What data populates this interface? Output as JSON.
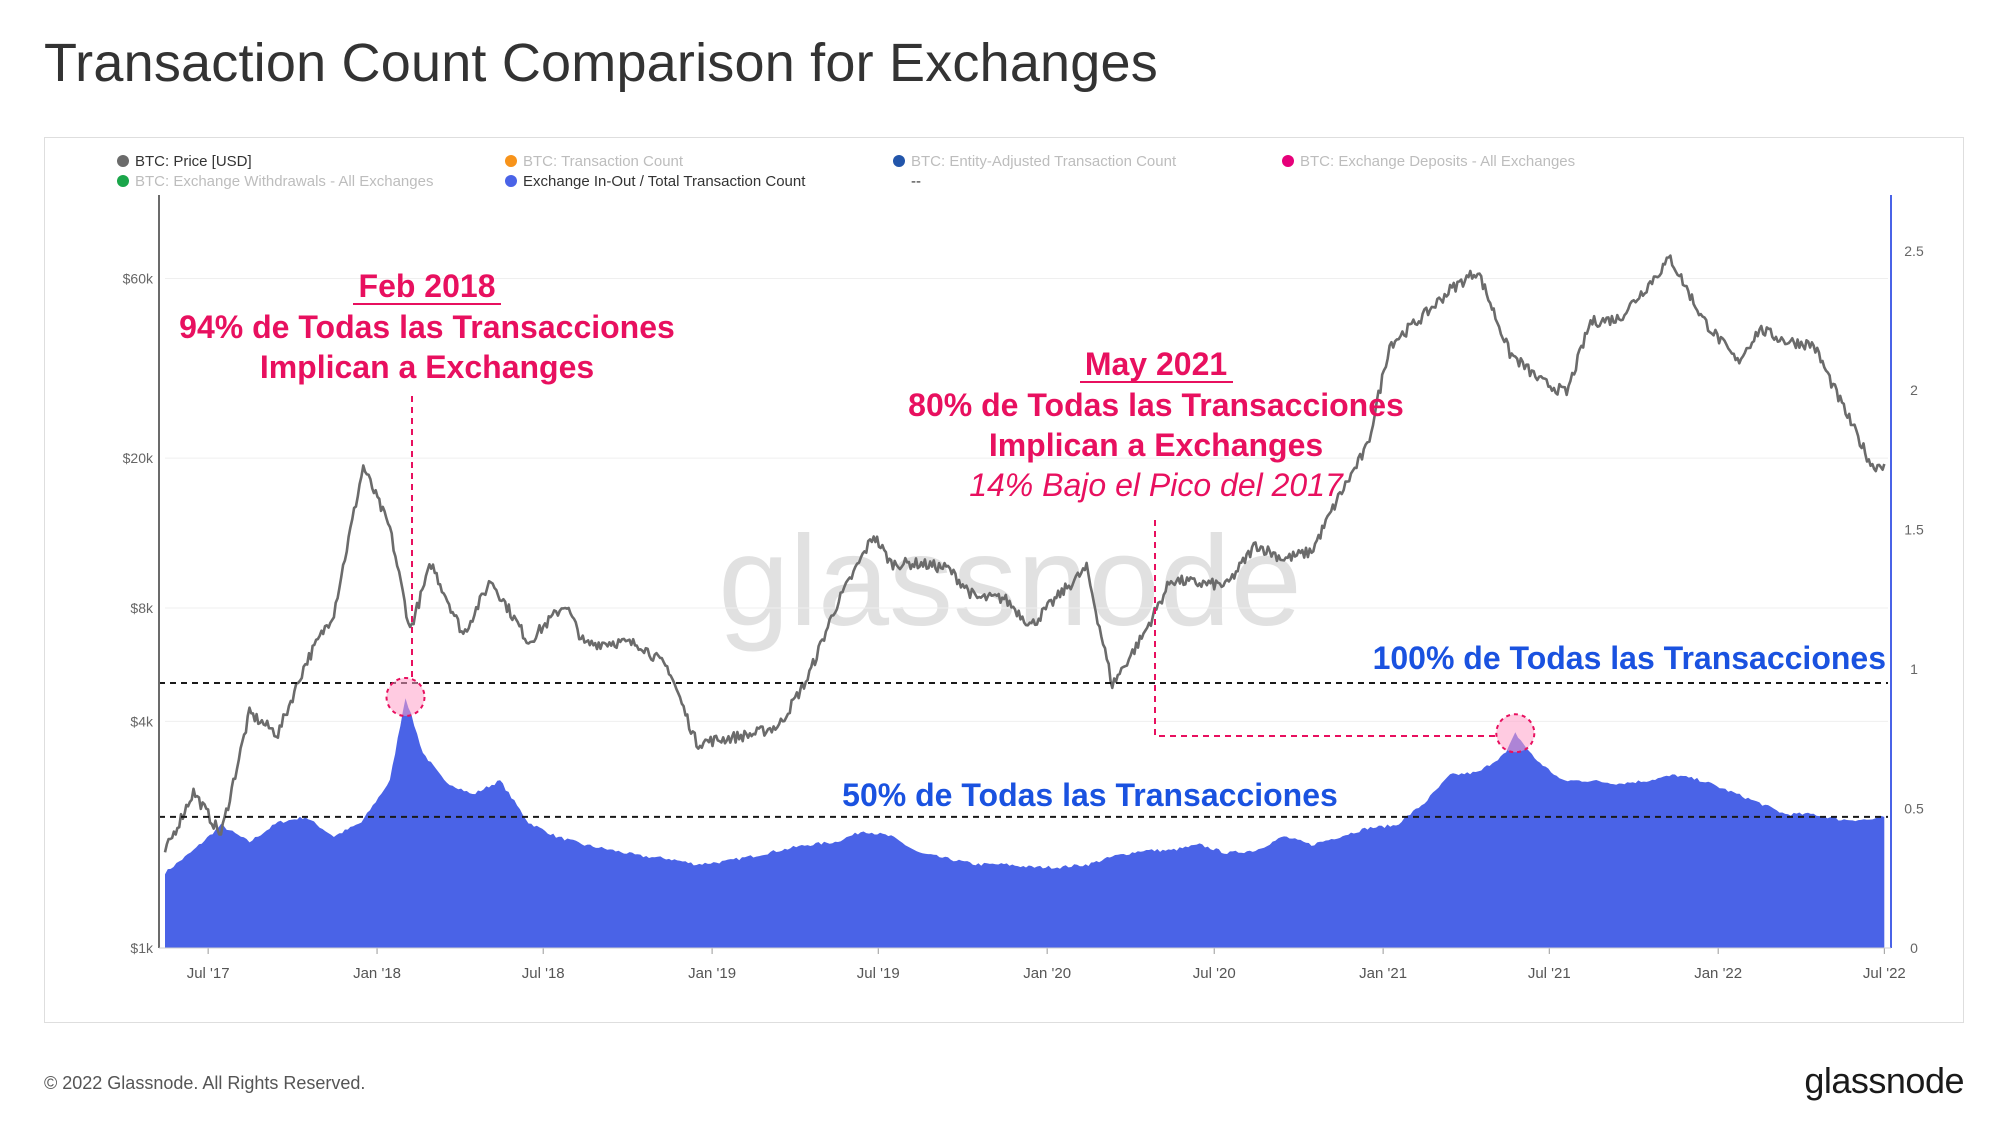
{
  "title": "Transaction Count Comparison for Exchanges",
  "footer": {
    "copyright": "© 2022 Glassnode. All Rights Reserved.",
    "brand": "glassnode"
  },
  "watermark": "glassnode",
  "legend": [
    {
      "label": "BTC: Price [USD]",
      "color": "#6b6b6b",
      "active": true
    },
    {
      "label": "BTC: Transaction Count",
      "color": "#f7931a",
      "active": false
    },
    {
      "label": "BTC: Entity-Adjusted Transaction Count",
      "color": "#2255aa",
      "active": false
    },
    {
      "label": "BTC: Exchange Deposits - All Exchanges",
      "color": "#e6007a",
      "active": false
    },
    {
      "label": "BTC: Exchange Withdrawals - All Exchanges",
      "color": "#1aa64a",
      "active": false
    },
    {
      "label": "Exchange In-Out / Total Transaction Count",
      "color": "#4a63e7",
      "active": true
    },
    {
      "label": "--",
      "color": "",
      "active": true
    }
  ],
  "annotations": {
    "feb2018": {
      "heading": "Feb 2018",
      "line1": "94% de Todas las Transacciones",
      "line2": "Implican a Exchanges"
    },
    "may2021": {
      "heading": "May 2021",
      "line1": "80% de Todas las Transacciones",
      "line2": "Implican a Exchanges",
      "line3": "14% Bajo el Pico del 2017"
    },
    "ref100": "100% de Todas las Transacciones",
    "ref50": "50% de Todas las Transacciones"
  },
  "colors": {
    "price_line": "#6b6b6b",
    "ratio_area": "#4a63e7",
    "annotation_pink": "#e8105f",
    "annotation_blue": "#1a52e0",
    "right_axis": "#4a63e7"
  },
  "chart_data": {
    "type": "area",
    "x_tick_labels": [
      "Jul '17",
      "Jan '18",
      "Jul '18",
      "Jan '19",
      "Jul '19",
      "Jan '20",
      "Jul '20",
      "Jan '21",
      "Jul '21",
      "Jan '22",
      "Jul '22"
    ],
    "y_left": {
      "scale": "log",
      "ticks": [
        "$1k",
        "$4k",
        "$8k",
        "$20k",
        "$60k"
      ],
      "tick_values": [
        1000,
        4000,
        8000,
        20000,
        60000
      ],
      "range": [
        1000,
        100000
      ]
    },
    "y_right": {
      "scale": "linear",
      "ticks": [
        "0",
        "0.5",
        "1",
        "1.5",
        "2",
        "2.5"
      ],
      "tick_values": [
        0,
        0.5,
        1,
        1.5,
        2,
        2.5
      ],
      "range": [
        0,
        2.7
      ]
    },
    "reference_lines": [
      {
        "value": 0.95,
        "axis": "right",
        "style": "dashed"
      },
      {
        "value": 0.47,
        "axis": "right",
        "style": "dashed"
      }
    ],
    "series": [
      {
        "name": "BTC: Price [USD]",
        "axis": "left",
        "style": "line",
        "x": [
          "2017-05-15",
          "2017-06-15",
          "2017-07-15",
          "2017-08-15",
          "2017-09-15",
          "2017-10-15",
          "2017-11-15",
          "2017-12-17",
          "2018-01-15",
          "2018-02-06",
          "2018-03-01",
          "2018-04-05",
          "2018-05-05",
          "2018-06-15",
          "2018-07-25",
          "2018-08-15",
          "2018-09-15",
          "2018-10-15",
          "2018-11-15",
          "2018-12-15",
          "2019-01-15",
          "2019-02-15",
          "2019-03-15",
          "2019-04-15",
          "2019-05-15",
          "2019-06-26",
          "2019-07-15",
          "2019-08-15",
          "2019-09-15",
          "2019-10-15",
          "2019-11-15",
          "2019-12-15",
          "2020-01-15",
          "2020-02-13",
          "2020-03-12",
          "2020-04-15",
          "2020-05-15",
          "2020-06-15",
          "2020-07-15",
          "2020-08-15",
          "2020-09-15",
          "2020-10-15",
          "2020-11-15",
          "2020-12-15",
          "2021-01-08",
          "2021-02-15",
          "2021-03-15",
          "2021-04-14",
          "2021-05-19",
          "2021-06-22",
          "2021-07-20",
          "2021-08-15",
          "2021-09-15",
          "2021-10-15",
          "2021-11-10",
          "2021-12-15",
          "2022-01-22",
          "2022-02-15",
          "2022-03-15",
          "2022-04-15",
          "2022-05-12",
          "2022-06-18",
          "2022-07-01"
        ],
        "y": [
          1800,
          2600,
          2000,
          4200,
          3700,
          5700,
          7800,
          19000,
          13000,
          7000,
          10500,
          6800,
          9500,
          6500,
          8200,
          6400,
          6500,
          6400,
          5500,
          3500,
          3600,
          3700,
          3900,
          5200,
          8000,
          12500,
          10500,
          10500,
          10200,
          8500,
          8500,
          7200,
          8700,
          10200,
          5000,
          6800,
          9500,
          9300,
          9200,
          11800,
          10800,
          11300,
          16000,
          21500,
          40000,
          48000,
          56000,
          63000,
          38000,
          32000,
          29800,
          46000,
          47000,
          57000,
          68000,
          47000,
          36000,
          44000,
          41000,
          40000,
          29000,
          19000,
          19300
        ]
      },
      {
        "name": "Exchange In-Out / Total Transaction Count",
        "axis": "right",
        "style": "area",
        "x": [
          "2017-05-15",
          "2017-06-15",
          "2017-07-15",
          "2017-08-15",
          "2017-09-15",
          "2017-10-15",
          "2017-11-15",
          "2017-12-15",
          "2018-01-15",
          "2018-02-01",
          "2018-02-20",
          "2018-03-15",
          "2018-04-15",
          "2018-05-15",
          "2018-06-15",
          "2018-07-15",
          "2018-08-15",
          "2018-09-15",
          "2018-10-15",
          "2018-11-15",
          "2018-12-15",
          "2019-01-15",
          "2019-02-15",
          "2019-03-15",
          "2019-04-15",
          "2019-05-15",
          "2019-06-15",
          "2019-07-15",
          "2019-08-15",
          "2019-09-15",
          "2019-10-15",
          "2019-11-15",
          "2019-12-15",
          "2020-01-15",
          "2020-02-15",
          "2020-03-15",
          "2020-04-15",
          "2020-05-15",
          "2020-06-15",
          "2020-07-15",
          "2020-08-15",
          "2020-09-15",
          "2020-10-15",
          "2020-11-15",
          "2020-12-15",
          "2021-01-15",
          "2021-02-15",
          "2021-03-15",
          "2021-04-15",
          "2021-05-15",
          "2021-05-25",
          "2021-06-15",
          "2021-07-15",
          "2021-08-15",
          "2021-09-15",
          "2021-10-15",
          "2021-11-15",
          "2021-12-15",
          "2022-01-15",
          "2022-02-15",
          "2022-03-15",
          "2022-04-15",
          "2022-05-15",
          "2022-06-15",
          "2022-07-01"
        ],
        "y": [
          0.27,
          0.35,
          0.44,
          0.38,
          0.45,
          0.47,
          0.4,
          0.45,
          0.6,
          0.9,
          0.7,
          0.6,
          0.55,
          0.6,
          0.45,
          0.4,
          0.37,
          0.35,
          0.33,
          0.32,
          0.3,
          0.31,
          0.33,
          0.35,
          0.37,
          0.38,
          0.42,
          0.4,
          0.34,
          0.32,
          0.3,
          0.3,
          0.29,
          0.29,
          0.3,
          0.33,
          0.35,
          0.35,
          0.37,
          0.34,
          0.35,
          0.4,
          0.37,
          0.4,
          0.43,
          0.44,
          0.52,
          0.62,
          0.63,
          0.7,
          0.77,
          0.68,
          0.6,
          0.6,
          0.59,
          0.6,
          0.62,
          0.6,
          0.56,
          0.52,
          0.48,
          0.48,
          0.46,
          0.46,
          0.47
        ]
      }
    ],
    "markers": [
      {
        "x": "2018-02-01",
        "y": 0.9,
        "axis": "right"
      },
      {
        "x": "2021-05-25",
        "y": 0.77,
        "axis": "right"
      }
    ]
  }
}
